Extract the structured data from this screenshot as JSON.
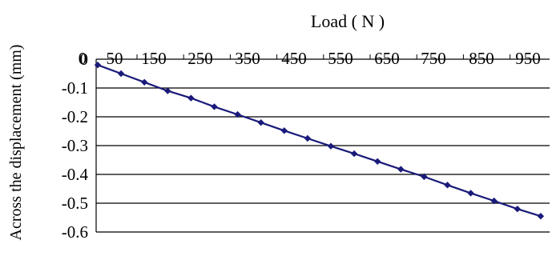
{
  "chart_data": {
    "type": "line",
    "title": "Load ( N )",
    "xlabel": "Load ( N )",
    "ylabel": "Across the displacement (mm)",
    "x_axis_position": "top",
    "x_tick_labels": [
      "0",
      "50",
      "150",
      "250",
      "350",
      "450",
      "550",
      "650",
      "750",
      "850",
      "950"
    ],
    "y_tick_labels": [
      "0",
      "-0.1",
      "-0.2",
      "-0.3",
      "-0.4",
      "-0.5",
      "-0.6"
    ],
    "ylim": [
      -0.6,
      0
    ],
    "grid": "horizontal",
    "legend": "none",
    "series": [
      {
        "color": "#1a1a7a",
        "marker": "diamond",
        "x": [
          50,
          100,
          150,
          200,
          250,
          300,
          350,
          400,
          450,
          500,
          550,
          600,
          650,
          700,
          750,
          800,
          850,
          900,
          950,
          1000
        ],
        "y": [
          -0.02,
          -0.05,
          -0.08,
          -0.11,
          -0.135,
          -0.165,
          -0.192,
          -0.22,
          -0.248,
          -0.275,
          -0.302,
          -0.328,
          -0.355,
          -0.382,
          -0.408,
          -0.437,
          -0.465,
          -0.492,
          -0.52,
          -0.545
        ]
      }
    ]
  }
}
